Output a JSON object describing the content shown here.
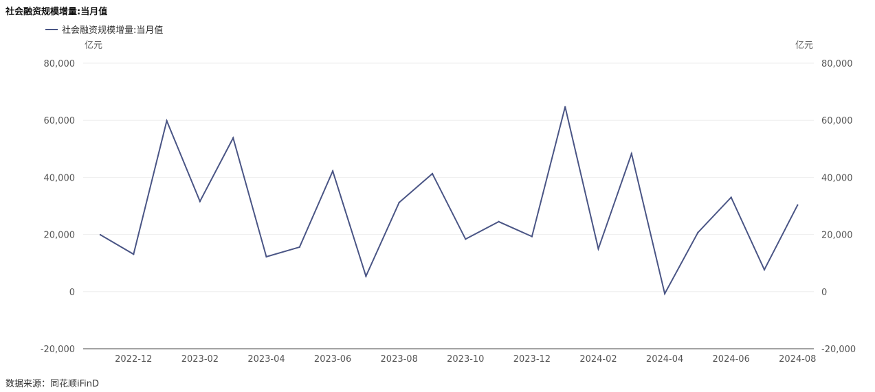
{
  "title": "社会融资规模增量:当月值",
  "source": "数据来源：同花顺iFinD",
  "colors": {
    "line": "#4a5585",
    "grid": "#eeeeee",
    "axis": "#444444"
  },
  "chart_data": {
    "type": "line",
    "title": "社会融资规模增量:当月值",
    "unit_left": "亿元",
    "unit_right": "亿元",
    "ylim": [
      -20000,
      80000
    ],
    "yticks": [
      "80,000",
      "60,000",
      "40,000",
      "20,000",
      "0",
      "-20,000"
    ],
    "ytick_values": [
      80000,
      60000,
      40000,
      20000,
      0,
      -20000
    ],
    "x_ticks": [
      "2022-12",
      "2023-02",
      "2023-04",
      "2023-06",
      "2023-08",
      "2023-10",
      "2023-12",
      "2024-02",
      "2024-04",
      "2024-06",
      "2024-08"
    ],
    "x": [
      "2022-11",
      "2022-12",
      "2023-01",
      "2023-02",
      "2023-03",
      "2023-04",
      "2023-05",
      "2023-06",
      "2023-07",
      "2023-08",
      "2023-09",
      "2023-10",
      "2023-11",
      "2023-12",
      "2024-01",
      "2024-02",
      "2024-03",
      "2024-04",
      "2024-05",
      "2024-06",
      "2024-07",
      "2024-08"
    ],
    "series": [
      {
        "name": "社会融资规模增量:当月值",
        "values": [
          19900,
          13100,
          59800,
          31600,
          53800,
          12200,
          15600,
          42200,
          5400,
          31200,
          41300,
          18400,
          24500,
          19300,
          64700,
          15000,
          48300,
          -700,
          20700,
          33000,
          7700,
          30300
        ]
      }
    ],
    "grid": true,
    "legend": "top-left"
  }
}
